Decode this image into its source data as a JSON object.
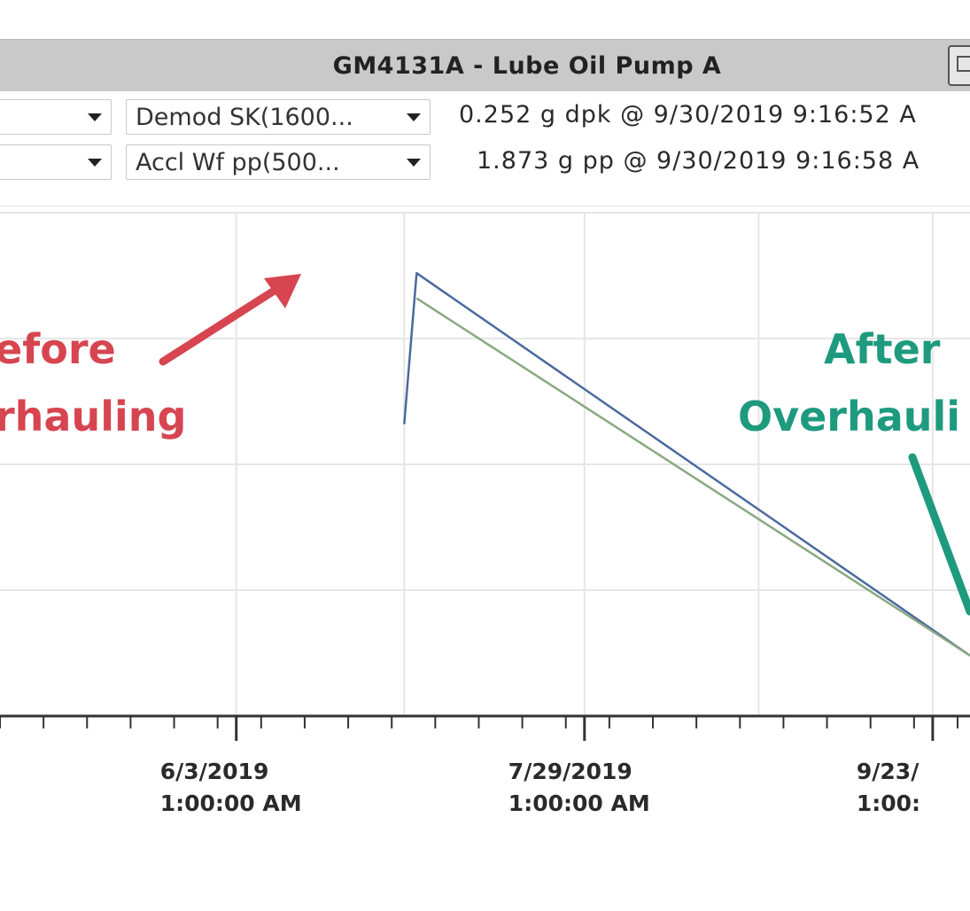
{
  "window": {
    "title": "GM4131A - Lube Oil Pump A"
  },
  "controls": {
    "row1": {
      "measurement": "Demod SK(1600...",
      "reading": "0.252 g dpk @ 9/30/2019 9:16:52 A"
    },
    "row2": {
      "measurement": "Accl Wf pp(500...",
      "reading": "1.873 g pp @ 9/30/2019 9:16:58 A"
    }
  },
  "annotations": {
    "before": {
      "line1": "efore",
      "line2": "rhauling",
      "color": "#d64550"
    },
    "after": {
      "line1": "After",
      "line2": "Overhauli",
      "color": "#1e9a7e"
    }
  },
  "chart_data": {
    "type": "line",
    "x_tick_labels": [
      {
        "date": "6/3/2019",
        "time": "1:00:00 AM"
      },
      {
        "date": "7/29/2019",
        "time": "1:00:00 AM"
      },
      {
        "date": "9/23/",
        "time": "1:00:"
      }
    ],
    "xlim": [
      "2019-04-26",
      "2019-09-29"
    ],
    "series": [
      {
        "color": "#4a6a9e",
        "points": [
          [
            "2019-06-30",
            0.58
          ],
          [
            "2019-07-02",
            0.88
          ],
          [
            "2019-09-29",
            0.12
          ]
        ]
      },
      {
        "color": "#8aa882",
        "points": [
          [
            "2019-07-02",
            0.83
          ],
          [
            "2019-09-29",
            0.12
          ]
        ]
      }
    ],
    "grid": true
  },
  "colors": {
    "titlebar": "#c9c9c9",
    "grid": "#e6e6e6",
    "axis": "#333333"
  }
}
